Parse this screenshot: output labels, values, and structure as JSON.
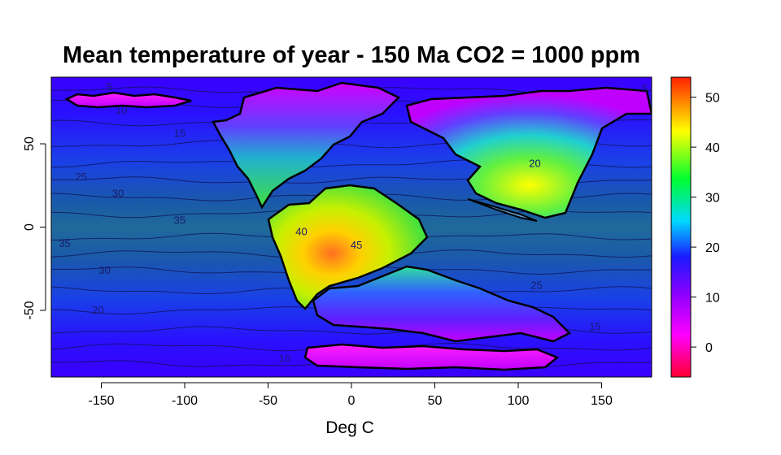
{
  "chart_data": {
    "type": "heatmap",
    "title": "Mean temperature of year - 150 Ma CO2 = 1000 ppm",
    "xlabel": "Deg C",
    "ylabel": "",
    "xlim": [
      -180,
      180
    ],
    "ylim": [
      -90,
      90
    ],
    "x_ticks": [
      -150,
      -100,
      -50,
      0,
      50,
      100,
      150
    ],
    "y_ticks": [
      -50,
      0,
      50
    ],
    "colorbar": {
      "range": [
        -6,
        54
      ],
      "ticks": [
        0,
        10,
        20,
        30,
        40,
        50
      ],
      "colors": [
        "#ff0030",
        "#ff00ff",
        "#8a00ff",
        "#1a1aff",
        "#00d8ff",
        "#00ff30",
        "#ffff00",
        "#ff2000"
      ]
    },
    "contour_labels": [
      {
        "lon": -145,
        "lat": 84,
        "text": "5"
      },
      {
        "lon": -138,
        "lat": 70,
        "text": "10"
      },
      {
        "lon": -103,
        "lat": 56,
        "text": "15"
      },
      {
        "lon": -162,
        "lat": 30,
        "text": "25"
      },
      {
        "lon": -140,
        "lat": 20,
        "text": "30"
      },
      {
        "lon": -103,
        "lat": 4,
        "text": "35"
      },
      {
        "lon": -172,
        "lat": -10,
        "text": "35"
      },
      {
        "lon": -148,
        "lat": -26,
        "text": "30"
      },
      {
        "lon": -152,
        "lat": -50,
        "text": "20"
      },
      {
        "lon": -30,
        "lat": -3,
        "text": "40"
      },
      {
        "lon": 3,
        "lat": -11,
        "text": "45"
      },
      {
        "lon": 110,
        "lat": 38,
        "text": "20"
      },
      {
        "lon": 111,
        "lat": -35,
        "text": "25"
      },
      {
        "lon": 146,
        "lat": -60,
        "text": "15"
      },
      {
        "lon": -40,
        "lat": -79,
        "text": "10"
      },
      {
        "lon": 176,
        "lat": 83,
        "text": "5"
      }
    ]
  }
}
